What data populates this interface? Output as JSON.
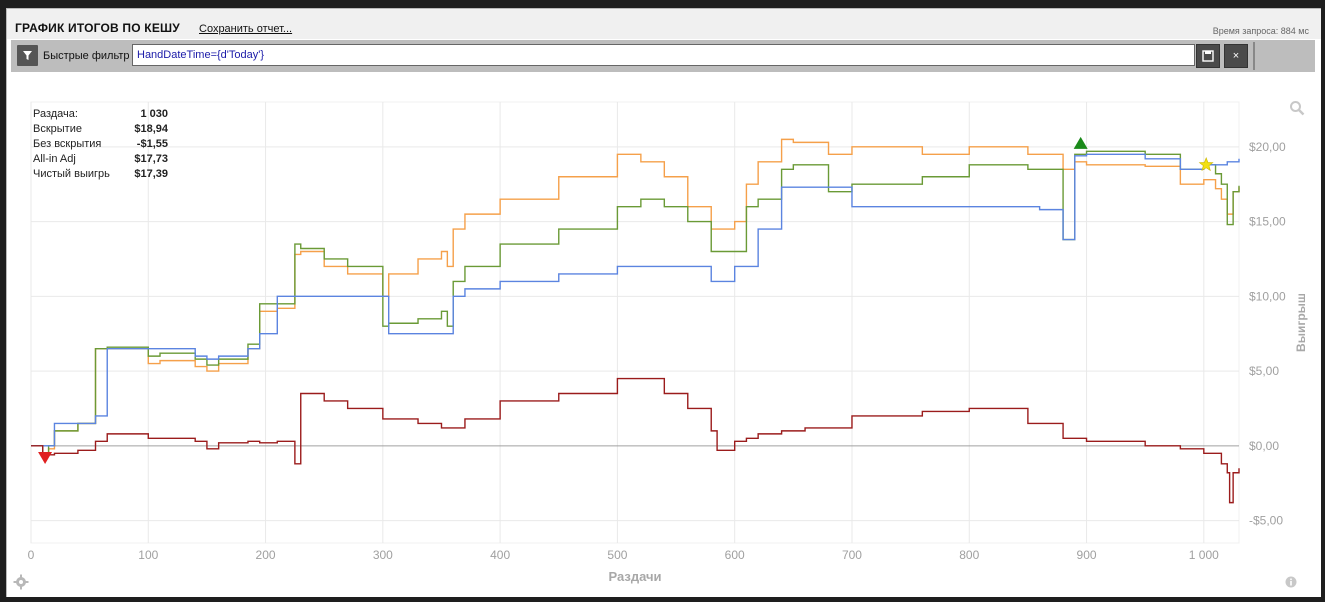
{
  "header": {
    "title": "ГРАФИК ИТОГОВ ПО КЕШУ",
    "save_link": "Сохранить отчет...",
    "request_time": "Время запроса: 884 мс"
  },
  "filterbar": {
    "label": "Быстрые фильтр",
    "query": "HandDateTime={d'Today'}",
    "save_icon": "floppy-icon",
    "close_label": "×"
  },
  "stats": [
    {
      "label": "Раздача:",
      "value": "1 030"
    },
    {
      "label": "Вскрытие",
      "value": "$18,94"
    },
    {
      "label": "Без вскрытия",
      "value": "-$1,55"
    },
    {
      "label": "All-in Adj",
      "value": "$17,73"
    },
    {
      "label": "Чистый выигрь",
      "value": "$17,39"
    }
  ],
  "colors": {
    "orange": "#f5a04a",
    "green": "#6a9a36",
    "blue": "#5b84e0",
    "red": "#9b1c1c",
    "grid": "#e9e9e9",
    "zero": "#a0a0a0"
  },
  "chart_data": {
    "type": "line",
    "xlabel": "Раздачи",
    "ylabel": "Выигрыш",
    "xlim": [
      0,
      1030
    ],
    "ylim": [
      -6.5,
      23
    ],
    "x_ticks": [
      0,
      100,
      200,
      300,
      400,
      500,
      600,
      700,
      800,
      900,
      1000
    ],
    "x_tick_labels": [
      "0",
      "100",
      "200",
      "300",
      "400",
      "500",
      "600",
      "700",
      "800",
      "900",
      "1 000"
    ],
    "y_ticks": [
      -5,
      0,
      5,
      10,
      15,
      20
    ],
    "y_tick_labels": [
      "-$5,00",
      "$0,00",
      "$5,00",
      "$10,00",
      "$15,00",
      "$20,00"
    ],
    "series": [
      {
        "key": "orange",
        "color": "#f5a04a",
        "x": [
          0,
          10,
          15,
          20,
          40,
          55,
          65,
          100,
          110,
          140,
          150,
          160,
          185,
          195,
          210,
          225,
          230,
          250,
          270,
          300,
          305,
          330,
          350,
          355,
          360,
          370,
          400,
          450,
          500,
          520,
          540,
          560,
          580,
          585,
          600,
          610,
          620,
          640,
          650,
          680,
          700,
          760,
          800,
          850,
          880,
          890,
          900,
          950,
          980,
          1000,
          1010,
          1015,
          1020,
          1025,
          1030
        ],
        "y": [
          0,
          -0.5,
          -0.2,
          1,
          1.5,
          6.5,
          6.5,
          5.5,
          5.7,
          5.3,
          5.0,
          5.5,
          6.5,
          9,
          9.2,
          12.8,
          13,
          12,
          11.5,
          10,
          11.5,
          12.5,
          13,
          12,
          14.5,
          15.5,
          16.5,
          18,
          19.5,
          19,
          18,
          16,
          14.5,
          14.5,
          15,
          17.5,
          19,
          20.5,
          20.3,
          19.5,
          20,
          19.5,
          20,
          19.5,
          18.5,
          19,
          18.8,
          18.7,
          17.5,
          17.8,
          17.2,
          16.5,
          15.5,
          17,
          17.3
        ]
      },
      {
        "key": "green",
        "color": "#6a9a36",
        "x": [
          0,
          10,
          15,
          20,
          40,
          55,
          65,
          100,
          110,
          140,
          150,
          160,
          185,
          195,
          210,
          225,
          230,
          250,
          270,
          300,
          305,
          330,
          350,
          355,
          360,
          370,
          400,
          450,
          500,
          520,
          540,
          560,
          580,
          585,
          600,
          610,
          620,
          640,
          650,
          680,
          700,
          760,
          800,
          850,
          880,
          890,
          900,
          950,
          980,
          1000,
          1010,
          1015,
          1020,
          1025,
          1030
        ],
        "y": [
          0,
          -0.5,
          0,
          1,
          1.5,
          6.5,
          6.6,
          6,
          6.2,
          5.8,
          5.4,
          5.8,
          6.8,
          9.5,
          9.5,
          13.5,
          13.2,
          12.5,
          12,
          8,
          8.2,
          8.5,
          9,
          8,
          11,
          12,
          13.5,
          14.5,
          16,
          16.5,
          16,
          15,
          13,
          13,
          13,
          16,
          16.5,
          18.5,
          18.8,
          17,
          17.5,
          18,
          18.8,
          18.5,
          13.8,
          19.5,
          19.7,
          19.5,
          18.5,
          18.8,
          18.2,
          17.5,
          14.8,
          17,
          17.4
        ]
      },
      {
        "key": "blue",
        "color": "#5b84e0",
        "x": [
          0,
          10,
          20,
          40,
          55,
          65,
          100,
          110,
          140,
          150,
          160,
          185,
          195,
          210,
          225,
          230,
          250,
          270,
          300,
          305,
          330,
          350,
          360,
          370,
          400,
          450,
          500,
          540,
          560,
          580,
          585,
          600,
          610,
          620,
          640,
          660,
          700,
          760,
          800,
          860,
          880,
          890,
          900,
          950,
          980,
          1000,
          1020,
          1025,
          1030
        ],
        "y": [
          0,
          0,
          1.5,
          1.5,
          2,
          6.5,
          6.5,
          6.5,
          6.0,
          5.8,
          6.0,
          6.5,
          7.5,
          10,
          10,
          10,
          10,
          10,
          10,
          7.5,
          7.5,
          7.5,
          10,
          10.5,
          11,
          11.5,
          12,
          12,
          12,
          11,
          11,
          12,
          12,
          14.5,
          17.3,
          17.3,
          16,
          16,
          16,
          15.8,
          13.8,
          19.4,
          19.5,
          19.2,
          18.5,
          18.8,
          19,
          19,
          19.2
        ]
      },
      {
        "key": "red",
        "color": "#9b1c1c",
        "x": [
          0,
          10,
          20,
          40,
          55,
          65,
          100,
          110,
          140,
          150,
          160,
          185,
          195,
          210,
          225,
          230,
          250,
          270,
          300,
          330,
          350,
          370,
          400,
          450,
          500,
          540,
          560,
          580,
          585,
          600,
          610,
          620,
          640,
          660,
          700,
          760,
          800,
          850,
          880,
          900,
          950,
          980,
          1000,
          1015,
          1020,
          1022,
          1025,
          1030
        ],
        "y": [
          0,
          -0.6,
          -0.5,
          -0.3,
          0.3,
          0.8,
          0.5,
          0.5,
          0.3,
          -0.2,
          0.2,
          0.3,
          0.2,
          0.3,
          -1.2,
          3.5,
          3,
          2.5,
          1.8,
          1.5,
          1.2,
          1.8,
          3,
          3.5,
          4.5,
          3.5,
          2.5,
          1,
          -0.3,
          0.3,
          0.5,
          0.8,
          1,
          1.2,
          2,
          2.3,
          2.5,
          1.5,
          0.5,
          0.3,
          0,
          -0.2,
          -0.5,
          -1.2,
          -1.8,
          -3.8,
          -1.8,
          -1.5
        ]
      }
    ],
    "markers": [
      {
        "type": "triangle-down",
        "x": 12,
        "y": -0.75,
        "color": "#e02020"
      },
      {
        "type": "triangle-up",
        "x": 895,
        "y": 20.2,
        "color": "#1a8a1a"
      },
      {
        "type": "star",
        "x": 1002,
        "y": 18.8,
        "color": "#f2e013"
      }
    ]
  }
}
